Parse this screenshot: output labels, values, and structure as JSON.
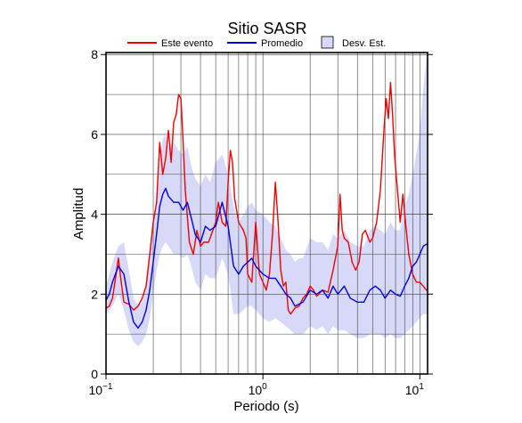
{
  "chart_data": {
    "type": "line",
    "title": "Sitio SASR",
    "xlabel": "Periodo (s)",
    "ylabel": "Amplitud",
    "x_scale": "log",
    "xlim": [
      0.1,
      11.2
    ],
    "ylim": [
      0,
      8.05
    ],
    "grid": true,
    "legend_position": "top",
    "x_tick_labels": [
      {
        "value": 0.1,
        "base": "10",
        "exp": "−1"
      },
      {
        "value": 1,
        "base": "10",
        "exp": "0"
      },
      {
        "value": 10,
        "base": "10",
        "exp": "1"
      }
    ],
    "y_ticks": [
      0,
      2,
      4,
      6,
      8
    ],
    "y_tick_labels": [
      "0",
      "2",
      "4",
      "6",
      "8"
    ],
    "legend": {
      "event_label": "Este evento",
      "mean_label": "Promedio",
      "std_label": "Desv. Est."
    },
    "colors": {
      "event": "#ee0000",
      "mean": "#0000dd",
      "std_fill": "#d8d8f8",
      "grid": "#444444"
    },
    "series": [
      {
        "name": "Este evento",
        "color": "#ee0000",
        "x": [
          0.1,
          0.105,
          0.11,
          0.115,
          0.12,
          0.125,
          0.13,
          0.14,
          0.15,
          0.16,
          0.17,
          0.18,
          0.19,
          0.2,
          0.21,
          0.22,
          0.23,
          0.24,
          0.25,
          0.26,
          0.27,
          0.28,
          0.29,
          0.3,
          0.31,
          0.32,
          0.34,
          0.36,
          0.38,
          0.4,
          0.42,
          0.45,
          0.48,
          0.5,
          0.52,
          0.55,
          0.58,
          0.6,
          0.62,
          0.64,
          0.66,
          0.7,
          0.75,
          0.78,
          0.8,
          0.85,
          0.9,
          0.95,
          1.0,
          1.05,
          1.1,
          1.15,
          1.2,
          1.25,
          1.3,
          1.35,
          1.4,
          1.45,
          1.5,
          1.6,
          1.7,
          1.8,
          1.9,
          2.0,
          2.1,
          2.2,
          2.4,
          2.6,
          2.8,
          3.0,
          3.1,
          3.2,
          3.3,
          3.5,
          3.7,
          3.9,
          4.1,
          4.3,
          4.5,
          4.8,
          5.0,
          5.3,
          5.6,
          5.9,
          6.1,
          6.3,
          6.5,
          6.7,
          6.9,
          7.2,
          7.5,
          7.8,
          8.2,
          8.5,
          9.0,
          9.5,
          10.0,
          10.5,
          11.0,
          11.2
        ],
        "values": [
          1.65,
          1.7,
          1.9,
          2.4,
          2.9,
          2.3,
          1.8,
          1.75,
          1.6,
          1.7,
          1.9,
          2.2,
          3.0,
          3.8,
          4.3,
          5.8,
          5.0,
          5.4,
          6.1,
          5.3,
          6.3,
          6.5,
          7.0,
          6.9,
          5.8,
          4.6,
          3.3,
          3.0,
          3.6,
          3.2,
          3.3,
          3.3,
          3.6,
          3.8,
          4.3,
          3.8,
          3.7,
          4.8,
          5.6,
          5.3,
          4.4,
          3.8,
          3.6,
          3.4,
          2.5,
          2.3,
          3.8,
          2.5,
          2.3,
          2.1,
          2.5,
          3.5,
          4.8,
          3.8,
          2.6,
          2.2,
          2.3,
          1.6,
          1.5,
          1.65,
          1.7,
          1.9,
          2.0,
          2.2,
          2.1,
          1.95,
          2.1,
          2.05,
          2.6,
          3.2,
          4.5,
          3.6,
          3.4,
          3.3,
          2.8,
          2.6,
          2.8,
          3.5,
          3.6,
          3.3,
          3.4,
          3.8,
          4.6,
          6.1,
          6.9,
          6.4,
          7.3,
          6.5,
          5.5,
          4.6,
          3.8,
          4.5,
          3.6,
          3.0,
          2.5,
          2.3,
          2.3,
          2.2,
          2.1,
          2.1
        ]
      },
      {
        "name": "Promedio",
        "color": "#0000dd",
        "x": [
          0.1,
          0.105,
          0.11,
          0.12,
          0.13,
          0.14,
          0.15,
          0.16,
          0.17,
          0.18,
          0.19,
          0.2,
          0.21,
          0.22,
          0.23,
          0.24,
          0.25,
          0.27,
          0.29,
          0.31,
          0.33,
          0.35,
          0.37,
          0.4,
          0.43,
          0.46,
          0.5,
          0.55,
          0.6,
          0.65,
          0.7,
          0.75,
          0.8,
          0.85,
          0.9,
          1.0,
          1.1,
          1.2,
          1.3,
          1.4,
          1.5,
          1.6,
          1.7,
          1.8,
          2.0,
          2.2,
          2.4,
          2.6,
          2.8,
          3.0,
          3.3,
          3.6,
          4.0,
          4.4,
          4.8,
          5.2,
          5.6,
          6.0,
          6.5,
          7.0,
          7.5,
          8.0,
          8.5,
          9.0,
          9.5,
          10.0,
          10.5,
          11.0,
          11.2
        ],
        "values": [
          1.85,
          2.0,
          2.3,
          2.7,
          2.5,
          1.8,
          1.3,
          1.15,
          1.3,
          1.6,
          2.1,
          2.8,
          3.5,
          4.2,
          4.5,
          4.65,
          4.45,
          4.3,
          4.3,
          4.1,
          4.3,
          3.9,
          3.5,
          3.3,
          3.7,
          3.6,
          3.7,
          4.3,
          3.7,
          2.7,
          2.5,
          2.7,
          2.8,
          2.9,
          2.7,
          2.5,
          2.4,
          2.4,
          2.2,
          2.0,
          1.9,
          1.7,
          1.75,
          1.8,
          2.1,
          2.0,
          2.1,
          1.9,
          2.2,
          2.0,
          2.2,
          1.9,
          1.8,
          1.8,
          2.1,
          2.2,
          2.1,
          1.9,
          2.1,
          2.0,
          1.95,
          2.2,
          2.4,
          2.7,
          2.8,
          3.0,
          3.2,
          3.25,
          3.25
        ]
      }
    ],
    "band": {
      "name": "Desv. Est.",
      "color": "#d8d8f8",
      "x": [
        0.1,
        0.11,
        0.12,
        0.13,
        0.14,
        0.15,
        0.16,
        0.17,
        0.18,
        0.19,
        0.2,
        0.21,
        0.22,
        0.23,
        0.24,
        0.25,
        0.27,
        0.29,
        0.31,
        0.33,
        0.35,
        0.37,
        0.4,
        0.43,
        0.46,
        0.5,
        0.55,
        0.6,
        0.65,
        0.7,
        0.75,
        0.8,
        0.85,
        0.9,
        1.0,
        1.1,
        1.2,
        1.3,
        1.4,
        1.5,
        1.6,
        1.7,
        1.8,
        2.0,
        2.2,
        2.4,
        2.6,
        2.8,
        3.0,
        3.3,
        3.6,
        4.0,
        4.4,
        4.8,
        5.2,
        5.6,
        6.0,
        6.5,
        7.0,
        7.5,
        8.0,
        8.5,
        9.0,
        9.5,
        10.0,
        10.5,
        11.0,
        11.2
      ],
      "upper": [
        2.2,
        2.8,
        3.2,
        3.3,
        2.6,
        1.9,
        1.7,
        1.8,
        2.3,
        2.9,
        3.7,
        4.4,
        5.2,
        5.9,
        6.0,
        5.7,
        5.8,
        5.6,
        5.5,
        5.7,
        5.2,
        4.9,
        4.7,
        5.0,
        4.8,
        5.3,
        5.5,
        5.0,
        4.2,
        3.8,
        4.0,
        4.2,
        4.3,
        4.1,
        4.0,
        3.8,
        3.7,
        3.4,
        3.1,
        3.0,
        2.8,
        2.9,
        2.9,
        3.4,
        3.3,
        3.3,
        3.1,
        3.5,
        3.4,
        3.6,
        3.3,
        3.2,
        3.2,
        3.6,
        3.7,
        3.6,
        3.5,
        3.8,
        3.6,
        3.6,
        4.2,
        4.5,
        5.0,
        5.5,
        6.1,
        7.1,
        7.9,
        8.0
      ],
      "lower": [
        1.5,
        1.7,
        2.0,
        1.6,
        1.1,
        0.8,
        0.7,
        0.8,
        1.0,
        1.4,
        2.0,
        2.6,
        3.0,
        3.2,
        3.3,
        3.2,
        3.0,
        3.0,
        2.9,
        3.0,
        2.7,
        2.3,
        2.1,
        2.5,
        2.4,
        2.4,
        2.9,
        2.5,
        1.5,
        1.5,
        1.6,
        1.7,
        1.7,
        1.6,
        1.4,
        1.3,
        1.4,
        1.3,
        1.2,
        1.1,
        1.0,
        1.0,
        1.0,
        1.2,
        1.1,
        1.2,
        1.0,
        1.2,
        1.1,
        1.1,
        1.0,
        0.9,
        0.9,
        1.0,
        1.0,
        1.0,
        0.9,
        1.0,
        0.9,
        0.9,
        1.0,
        1.1,
        1.2,
        1.3,
        1.4,
        1.5,
        1.5,
        1.5
      ]
    }
  }
}
